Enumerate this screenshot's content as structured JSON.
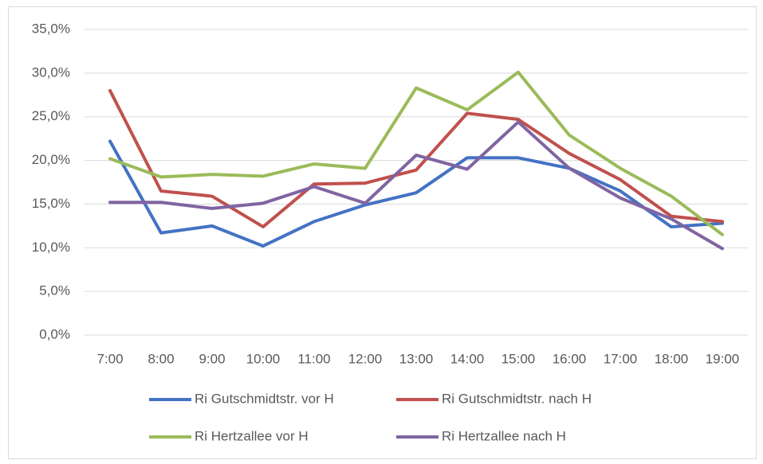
{
  "chart_data": {
    "type": "line",
    "categories": [
      "7:00",
      "8:00",
      "9:00",
      "10:00",
      "11:00",
      "12:00",
      "13:00",
      "14:00",
      "15:00",
      "16:00",
      "17:00",
      "18:00",
      "19:00"
    ],
    "series": [
      {
        "name": "Ri Gutschmidtstr. vor H",
        "color": "#4472c4",
        "values": [
          22.2,
          11.7,
          12.5,
          10.2,
          13.0,
          14.9,
          16.3,
          20.3,
          20.3,
          19.1,
          16.5,
          12.4,
          12.8
        ]
      },
      {
        "name": "Ri Gutschmidtstr. nach H",
        "color": "#c0504d",
        "values": [
          28.0,
          16.5,
          15.9,
          12.4,
          17.3,
          17.4,
          18.9,
          25.4,
          24.7,
          20.8,
          17.8,
          13.6,
          13.0
        ]
      },
      {
        "name": "Ri Hertzallee vor H",
        "color": "#9bbb59",
        "values": [
          20.2,
          18.1,
          18.4,
          18.2,
          19.6,
          19.1,
          28.3,
          25.8,
          30.1,
          22.9,
          19.1,
          15.9,
          11.5
        ]
      },
      {
        "name": "Ri Hertzallee nach H",
        "color": "#8064a2",
        "values": [
          15.2,
          15.2,
          14.5,
          15.1,
          17.0,
          15.1,
          20.6,
          19.0,
          24.4,
          19.1,
          15.7,
          13.3,
          9.9
        ]
      }
    ],
    "ylim": [
      0,
      35
    ],
    "yticks": [
      {
        "value": 0,
        "label": "0,0%"
      },
      {
        "value": 5,
        "label": "5,0%"
      },
      {
        "value": 10,
        "label": "10,0%"
      },
      {
        "value": 15,
        "label": "15,0%"
      },
      {
        "value": 20,
        "label": "20,0%"
      },
      {
        "value": 25,
        "label": "25,0%"
      },
      {
        "value": 30,
        "label": "30,0%"
      },
      {
        "value": 35,
        "label": "35,0%"
      }
    ],
    "grid": true,
    "legend": "bottom"
  }
}
